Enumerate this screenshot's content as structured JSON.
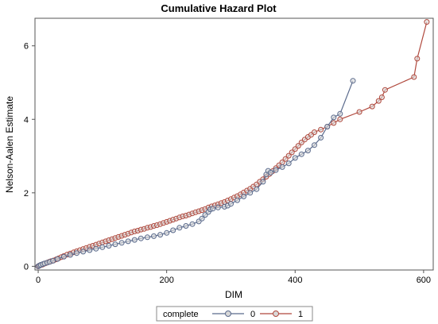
{
  "chart_data": {
    "type": "line",
    "title": "Cumulative Hazard Plot",
    "xlabel": "DIM",
    "ylabel": "Nelson-Aalen Estimate",
    "xlim": [
      -5,
      615
    ],
    "ylim": [
      -0.1,
      6.75
    ],
    "xticks": [
      0,
      200,
      400,
      600
    ],
    "yticks": [
      0,
      2,
      4,
      6
    ],
    "legend": {
      "title": "complete",
      "position": "bottom"
    },
    "series": [
      {
        "name": "0",
        "color": "#5a6a8c",
        "x": [
          0,
          2,
          4,
          7,
          10,
          14,
          18,
          23,
          30,
          40,
          50,
          60,
          70,
          80,
          90,
          100,
          110,
          120,
          130,
          140,
          150,
          160,
          170,
          180,
          190,
          200,
          210,
          220,
          230,
          240,
          250,
          255,
          260,
          265,
          268,
          272,
          280,
          290,
          295,
          300,
          310,
          320,
          330,
          340,
          350,
          355,
          358,
          362,
          370,
          380,
          390,
          400,
          410,
          420,
          430,
          440,
          450,
          460,
          470,
          490
        ],
        "y": [
          0.0,
          0.02,
          0.04,
          0.06,
          0.08,
          0.1,
          0.12,
          0.15,
          0.2,
          0.26,
          0.31,
          0.36,
          0.4,
          0.44,
          0.48,
          0.52,
          0.56,
          0.6,
          0.64,
          0.68,
          0.72,
          0.76,
          0.79,
          0.82,
          0.86,
          0.91,
          0.98,
          1.05,
          1.1,
          1.15,
          1.22,
          1.3,
          1.4,
          1.48,
          1.55,
          1.57,
          1.6,
          1.62,
          1.65,
          1.7,
          1.8,
          1.9,
          2.0,
          2.1,
          2.3,
          2.5,
          2.6,
          2.55,
          2.62,
          2.7,
          2.8,
          2.95,
          3.05,
          3.15,
          3.3,
          3.5,
          3.8,
          4.05,
          4.15,
          5.05
        ]
      },
      {
        "name": "1",
        "color": "#b0483c",
        "x": [
          0,
          1,
          2,
          3,
          5,
          7,
          9,
          11,
          14,
          17,
          20,
          24,
          28,
          32,
          36,
          40,
          45,
          50,
          55,
          60,
          65,
          70,
          75,
          80,
          85,
          90,
          95,
          100,
          105,
          110,
          115,
          120,
          125,
          130,
          135,
          140,
          145,
          150,
          155,
          160,
          165,
          170,
          175,
          180,
          185,
          190,
          195,
          200,
          205,
          210,
          215,
          220,
          225,
          230,
          235,
          240,
          245,
          250,
          255,
          260,
          265,
          270,
          275,
          280,
          285,
          290,
          295,
          300,
          305,
          310,
          315,
          320,
          325,
          330,
          335,
          340,
          345,
          350,
          355,
          360,
          365,
          370,
          375,
          380,
          385,
          390,
          395,
          400,
          405,
          410,
          415,
          420,
          425,
          430,
          440,
          450,
          460,
          470,
          500,
          520,
          530,
          535,
          540,
          585,
          590,
          605
        ],
        "y": [
          0.0,
          0.01,
          0.02,
          0.03,
          0.04,
          0.05,
          0.07,
          0.08,
          0.1,
          0.12,
          0.14,
          0.16,
          0.19,
          0.22,
          0.25,
          0.28,
          0.32,
          0.35,
          0.38,
          0.41,
          0.44,
          0.47,
          0.5,
          0.53,
          0.56,
          0.59,
          0.62,
          0.65,
          0.68,
          0.71,
          0.74,
          0.77,
          0.8,
          0.83,
          0.86,
          0.89,
          0.92,
          0.95,
          0.97,
          1.0,
          1.02,
          1.05,
          1.07,
          1.1,
          1.12,
          1.15,
          1.18,
          1.21,
          1.24,
          1.27,
          1.3,
          1.33,
          1.36,
          1.38,
          1.41,
          1.44,
          1.47,
          1.5,
          1.53,
          1.56,
          1.6,
          1.63,
          1.66,
          1.69,
          1.72,
          1.75,
          1.79,
          1.83,
          1.87,
          1.91,
          1.96,
          2.01,
          2.06,
          2.11,
          2.17,
          2.23,
          2.3,
          2.37,
          2.44,
          2.51,
          2.59,
          2.67,
          2.75,
          2.83,
          2.92,
          3.01,
          3.1,
          3.19,
          3.28,
          3.37,
          3.45,
          3.52,
          3.58,
          3.65,
          3.72,
          3.8,
          3.9,
          4.0,
          4.2,
          4.35,
          4.5,
          4.6,
          4.8,
          5.15,
          5.65,
          6.65
        ]
      }
    ]
  }
}
